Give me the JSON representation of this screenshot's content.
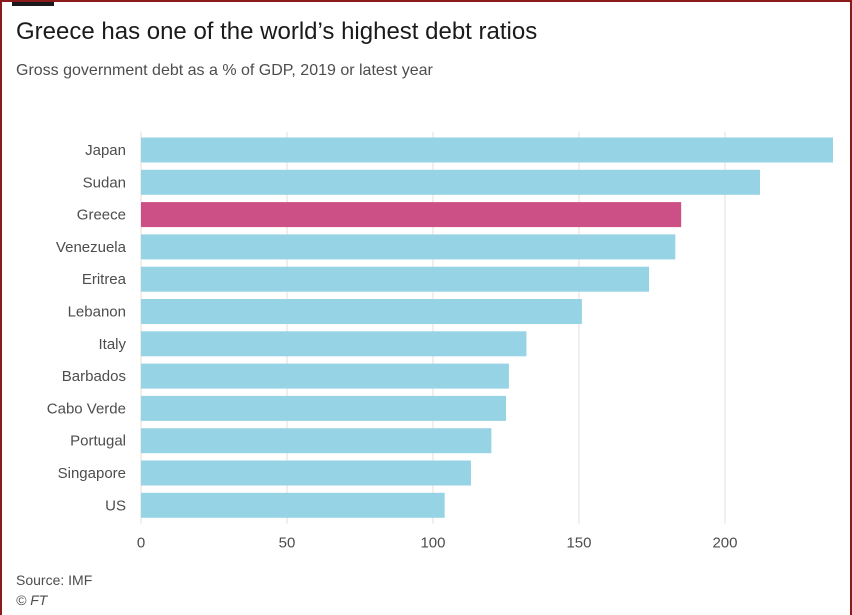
{
  "header": {
    "title": "Greece has one of the world’s highest debt ratios",
    "subtitle": "Gross government debt as a % of GDP, 2019 or latest year"
  },
  "footer": {
    "source": "Source: IMF",
    "copyright": "© FT"
  },
  "colors": {
    "bar": "#96d3e4",
    "highlight": "#cc4f86",
    "grid": "#e8dcd6",
    "axis_text": "#4d4d4d",
    "border": "#8b1a1a"
  },
  "chart_data": {
    "type": "bar",
    "orientation": "horizontal",
    "title": "Greece has one of the world’s highest debt ratios",
    "subtitle": "Gross government debt as a % of GDP, 2019 or latest year",
    "categories": [
      "Japan",
      "Sudan",
      "Greece",
      "Venezuela",
      "Eritrea",
      "Lebanon",
      "Italy",
      "Barbados",
      "Cabo Verde",
      "Portugal",
      "Singapore",
      "US"
    ],
    "values": [
      237,
      212,
      185,
      183,
      174,
      151,
      132,
      126,
      125,
      120,
      113,
      104
    ],
    "highlight": "Greece",
    "xlim": [
      0,
      237
    ],
    "xticks": [
      0,
      50,
      100,
      150,
      200
    ],
    "grid": true,
    "xlabel": "",
    "ylabel": ""
  }
}
